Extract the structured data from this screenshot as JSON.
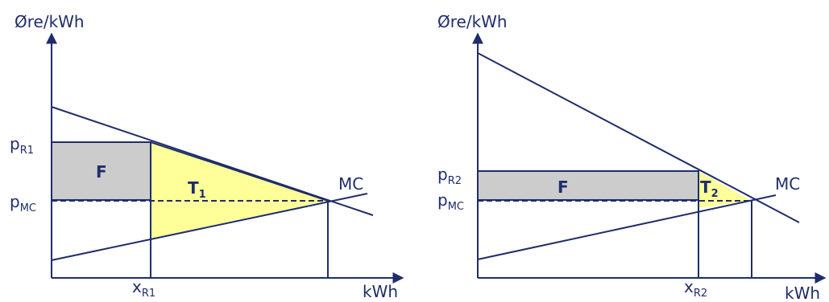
{
  "colors": {
    "line": "#1f2d6b",
    "gray_fill": "#cccccc",
    "yellow_fill": "#ffff99"
  },
  "diagrams": [
    {
      "y_axis_label": "Øre/kWh",
      "x_axis_label": "kWh",
      "mc_label": "MC",
      "p_r": {
        "main": "p",
        "sub": "R1"
      },
      "p_mc": {
        "main": "p",
        "sub": "MC"
      },
      "x_r": {
        "main": "x",
        "sub": "R1"
      },
      "f_label": "F",
      "t_label": {
        "main": "T",
        "sub": "1"
      }
    },
    {
      "y_axis_label": "Øre/kWh",
      "x_axis_label": "kWh",
      "mc_label": "MC",
      "p_r": {
        "main": "p",
        "sub": "R2"
      },
      "p_mc": {
        "main": "p",
        "sub": "MC"
      },
      "x_r": {
        "main": "x",
        "sub": "R2"
      },
      "f_label": "F",
      "t_label": {
        "main": "T",
        "sub": "2"
      }
    }
  ]
}
